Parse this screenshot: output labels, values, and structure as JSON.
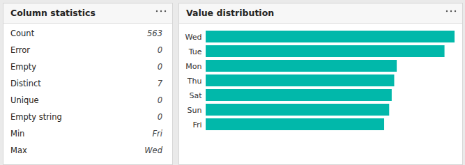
{
  "stats_panel": {
    "title": "Column statistics",
    "rows": [
      {
        "label": "Count",
        "value": 563
      },
      {
        "label": "Error",
        "value": 0
      },
      {
        "label": "Empty",
        "value": 0
      },
      {
        "label": "Distinct",
        "value": 7
      },
      {
        "label": "Unique",
        "value": 0
      },
      {
        "label": "Empty string",
        "value": 0
      },
      {
        "label": "Min",
        "value": "Fri"
      },
      {
        "label": "Max",
        "value": "Wed"
      }
    ]
  },
  "chart_data": {
    "type": "bar",
    "title": "Value distribution",
    "orientation": "horizontal",
    "categories": [
      "Wed",
      "Tue",
      "Mon",
      "Thu",
      "Sat",
      "Sun",
      "Fri"
    ],
    "values": [
      99,
      95,
      76,
      75,
      74,
      73,
      71
    ],
    "color": "#01b8aa",
    "xlim": [
      0,
      99
    ],
    "tick_labels": "y"
  }
}
